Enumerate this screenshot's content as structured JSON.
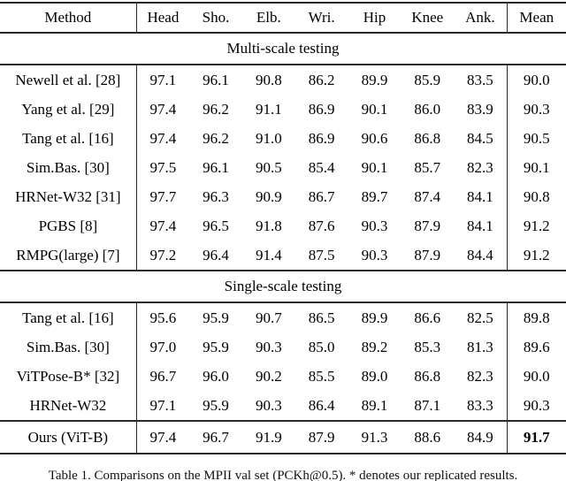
{
  "colors": {
    "background": "#ffffff",
    "text": "#000000",
    "rule": "#2a2a2a"
  },
  "table": {
    "columns": [
      "Method",
      "Head",
      "Sho.",
      "Elb.",
      "Wri.",
      "Hip",
      "Knee",
      "Ank.",
      "Mean"
    ],
    "sections": [
      {
        "label": "Multi-scale testing",
        "rows": [
          {
            "method": "Newell et al. [28]",
            "values": [
              "97.1",
              "96.1",
              "90.8",
              "86.2",
              "89.9",
              "85.9",
              "83.5"
            ],
            "mean": "90.0",
            "mean_bold": false
          },
          {
            "method": "Yang et al. [29]",
            "values": [
              "97.4",
              "96.2",
              "91.1",
              "86.9",
              "90.1",
              "86.0",
              "83.9"
            ],
            "mean": "90.3",
            "mean_bold": false
          },
          {
            "method": "Tang et al. [16]",
            "values": [
              "97.4",
              "96.2",
              "91.0",
              "86.9",
              "90.6",
              "86.8",
              "84.5"
            ],
            "mean": "90.5",
            "mean_bold": false
          },
          {
            "method": "Sim.Bas. [30]",
            "values": [
              "97.5",
              "96.1",
              "90.5",
              "85.4",
              "90.1",
              "85.7",
              "82.3"
            ],
            "mean": "90.1",
            "mean_bold": false
          },
          {
            "method": "HRNet-W32 [31]",
            "values": [
              "97.7",
              "96.3",
              "90.9",
              "86.7",
              "89.7",
              "87.4",
              "84.1"
            ],
            "mean": "90.8",
            "mean_bold": false
          },
          {
            "method": "PGBS [8]",
            "values": [
              "97.4",
              "96.5",
              "91.8",
              "87.6",
              "90.3",
              "87.9",
              "84.1"
            ],
            "mean": "91.2",
            "mean_bold": false
          },
          {
            "method": "RMPG(large) [7]",
            "values": [
              "97.2",
              "96.4",
              "91.4",
              "87.5",
              "90.3",
              "87.9",
              "84.4"
            ],
            "mean": "91.2",
            "mean_bold": false
          }
        ]
      },
      {
        "label": "Single-scale testing",
        "rows": [
          {
            "method": "Tang et al. [16]",
            "values": [
              "95.6",
              "95.9",
              "90.7",
              "86.5",
              "89.9",
              "86.6",
              "82.5"
            ],
            "mean": "89.8",
            "mean_bold": false
          },
          {
            "method": "Sim.Bas. [30]",
            "values": [
              "97.0",
              "95.9",
              "90.3",
              "85.0",
              "89.2",
              "85.3",
              "81.3"
            ],
            "mean": "89.6",
            "mean_bold": false
          },
          {
            "method": "ViTPose-B* [32]",
            "values": [
              "96.7",
              "96.0",
              "90.2",
              "85.5",
              "89.0",
              "86.8",
              "82.3"
            ],
            "mean": "90.0",
            "mean_bold": false
          },
          {
            "method": "HRNet-W32",
            "values": [
              "97.1",
              "95.9",
              "90.3",
              "86.4",
              "89.1",
              "87.1",
              "83.3"
            ],
            "mean": "90.3",
            "mean_bold": false
          }
        ]
      },
      {
        "label": null,
        "rows": [
          {
            "method": "Ours (ViT-B)",
            "values": [
              "97.4",
              "96.7",
              "91.9",
              "87.9",
              "91.3",
              "88.6",
              "84.9"
            ],
            "mean": "91.7",
            "mean_bold": true
          }
        ]
      }
    ]
  },
  "caption": "Table 1. Comparisons on the MPII val set (PCKh@0.5). * denotes our replicated results."
}
